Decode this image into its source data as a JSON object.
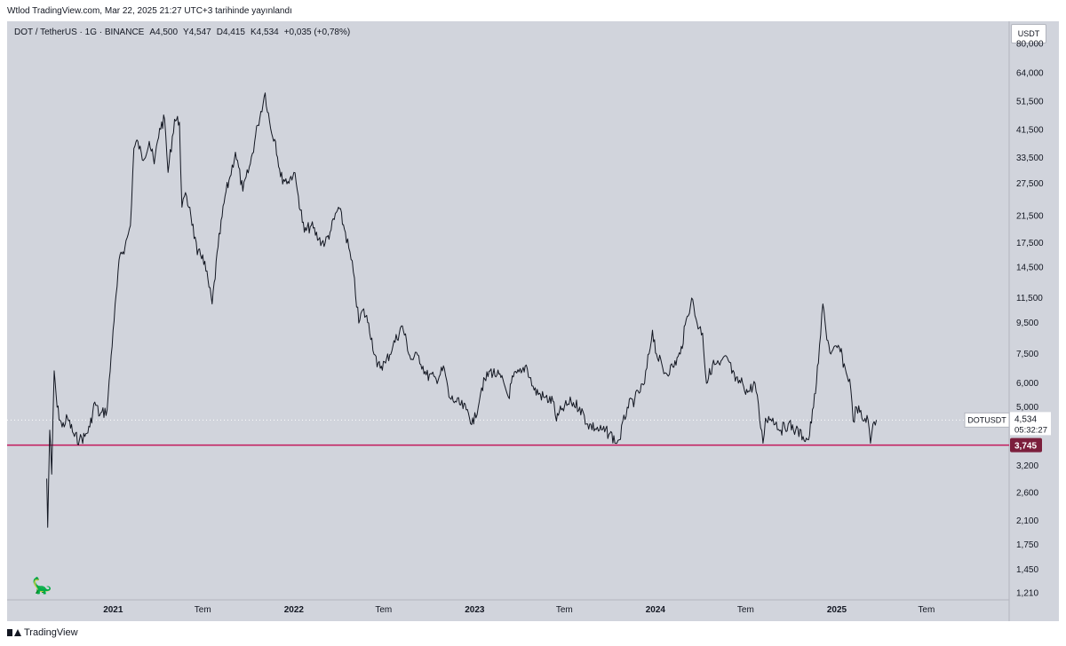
{
  "caption": "Wtlod TradingView.com, Mar 22, 2025 21:27 UTC+3 tarihinde yayınlandı",
  "header": {
    "symbol": "DOT / TetherUS · 1G · BINANCE",
    "open": "A4,500",
    "high": "Y4,547",
    "low": "D4,415",
    "close": "K4,534",
    "change": "+0,035 (+0,78%)"
  },
  "currency": "USDT",
  "footer": {
    "brand": "TradingView"
  },
  "icons": {
    "logo": "tradingview-logo-icon",
    "mascot": "dinosaur-icon"
  },
  "colors": {
    "background": "#d1d4dc",
    "price_line": "#131722",
    "support_line": "#c2185b",
    "support_label_bg": "#7b1f3c"
  },
  "chart_data": {
    "type": "line",
    "symbol": "DOTUSDT",
    "title": "DOT / TetherUS · 1G · BINANCE",
    "xlabel": "",
    "ylabel": "",
    "y_scale": "log",
    "ylim": [
      1.15,
      95
    ],
    "xlim": [
      "2020-06-01",
      "2025-12-15"
    ],
    "x_ticks": [
      {
        "date": "2021-01-01",
        "label": "2021"
      },
      {
        "date": "2021-07-01",
        "label": "Tem"
      },
      {
        "date": "2022-01-01",
        "label": "2022"
      },
      {
        "date": "2022-07-01",
        "label": "Tem"
      },
      {
        "date": "2023-01-01",
        "label": "2023"
      },
      {
        "date": "2023-07-01",
        "label": "Tem"
      },
      {
        "date": "2024-01-01",
        "label": "2024"
      },
      {
        "date": "2024-07-01",
        "label": "Tem"
      },
      {
        "date": "2025-01-01",
        "label": "2025"
      },
      {
        "date": "2025-07-01",
        "label": "Tem"
      }
    ],
    "y_ticks": [
      {
        "value": 80,
        "label": "80,000"
      },
      {
        "value": 64,
        "label": "64,000"
      },
      {
        "value": 51.5,
        "label": "51,500"
      },
      {
        "value": 41.5,
        "label": "41,500"
      },
      {
        "value": 33.5,
        "label": "33,500"
      },
      {
        "value": 27.5,
        "label": "27,500"
      },
      {
        "value": 21.5,
        "label": "21,500"
      },
      {
        "value": 17.5,
        "label": "17,500"
      },
      {
        "value": 14.5,
        "label": "14,500"
      },
      {
        "value": 11.5,
        "label": "11,500"
      },
      {
        "value": 9.5,
        "label": "9,500"
      },
      {
        "value": 7.5,
        "label": "7,500"
      },
      {
        "value": 6,
        "label": "6,000"
      },
      {
        "value": 5,
        "label": "5,000"
      },
      {
        "value": 3.2,
        "label": "3,200"
      },
      {
        "value": 2.6,
        "label": "2,600"
      },
      {
        "value": 2.1,
        "label": "2,100"
      },
      {
        "value": 1.75,
        "label": "1,750"
      },
      {
        "value": 1.45,
        "label": "1,450"
      },
      {
        "value": 1.21,
        "label": "1,210"
      }
    ],
    "price_series": [
      [
        "2020-08-20",
        2.9
      ],
      [
        "2020-08-22",
        2.0
      ],
      [
        "2020-08-26",
        4.2
      ],
      [
        "2020-08-30",
        3.0
      ],
      [
        "2020-09-04",
        6.6
      ],
      [
        "2020-09-10",
        5.0
      ],
      [
        "2020-09-20",
        4.3
      ],
      [
        "2020-10-01",
        4.6
      ],
      [
        "2020-10-15",
        4.0
      ],
      [
        "2020-10-25",
        3.9
      ],
      [
        "2020-11-05",
        4.0
      ],
      [
        "2020-11-15",
        4.3
      ],
      [
        "2020-11-25",
        5.2
      ],
      [
        "2020-12-05",
        4.7
      ],
      [
        "2020-12-20",
        4.9
      ],
      [
        "2021-01-01",
        9.0
      ],
      [
        "2021-01-15",
        16.0
      ],
      [
        "2021-01-25",
        17.0
      ],
      [
        "2021-02-05",
        20.0
      ],
      [
        "2021-02-12",
        36.0
      ],
      [
        "2021-02-20",
        38.0
      ],
      [
        "2021-03-01",
        33.0
      ],
      [
        "2021-03-15",
        38.0
      ],
      [
        "2021-03-25",
        32.0
      ],
      [
        "2021-04-05",
        42.0
      ],
      [
        "2021-04-15",
        45.0
      ],
      [
        "2021-04-22",
        30.0
      ],
      [
        "2021-05-05",
        45.0
      ],
      [
        "2021-05-15",
        44.0
      ],
      [
        "2021-05-20",
        23.0
      ],
      [
        "2021-05-25",
        25.0
      ],
      [
        "2021-06-05",
        23.0
      ],
      [
        "2021-06-20",
        16.0
      ],
      [
        "2021-07-01",
        16.0
      ],
      [
        "2021-07-20",
        11.0
      ],
      [
        "2021-08-01",
        17.0
      ],
      [
        "2021-08-15",
        25.0
      ],
      [
        "2021-08-25",
        29.0
      ],
      [
        "2021-09-05",
        35.0
      ],
      [
        "2021-09-20",
        26.0
      ],
      [
        "2021-10-05",
        32.0
      ],
      [
        "2021-10-20",
        43.0
      ],
      [
        "2021-11-04",
        55.0
      ],
      [
        "2021-11-15",
        42.0
      ],
      [
        "2021-11-25",
        38.0
      ],
      [
        "2021-12-05",
        29.0
      ],
      [
        "2021-12-20",
        28.0
      ],
      [
        "2022-01-01",
        30.0
      ],
      [
        "2022-01-10",
        25.0
      ],
      [
        "2022-01-22",
        19.0
      ],
      [
        "2022-02-05",
        20.0
      ],
      [
        "2022-02-20",
        18.0
      ],
      [
        "2022-03-05",
        17.5
      ],
      [
        "2022-03-15",
        19.0
      ],
      [
        "2022-04-01",
        23.0
      ],
      [
        "2022-04-15",
        19.0
      ],
      [
        "2022-05-01",
        14.0
      ],
      [
        "2022-05-12",
        9.5
      ],
      [
        "2022-05-20",
        10.5
      ],
      [
        "2022-06-01",
        9.5
      ],
      [
        "2022-06-18",
        6.8
      ],
      [
        "2022-07-05",
        7.0
      ],
      [
        "2022-07-20",
        8.0
      ],
      [
        "2022-08-08",
        9.3
      ],
      [
        "2022-08-25",
        7.2
      ],
      [
        "2022-09-10",
        7.4
      ],
      [
        "2022-09-25",
        6.4
      ],
      [
        "2022-10-15",
        6.2
      ],
      [
        "2022-11-01",
        6.7
      ],
      [
        "2022-11-10",
        5.4
      ],
      [
        "2022-11-25",
        5.2
      ],
      [
        "2022-12-15",
        4.9
      ],
      [
        "2022-12-30",
        4.4
      ],
      [
        "2023-01-15",
        5.8
      ],
      [
        "2023-02-01",
        6.6
      ],
      [
        "2023-02-15",
        6.4
      ],
      [
        "2023-03-01",
        6.0
      ],
      [
        "2023-03-10",
        5.4
      ],
      [
        "2023-03-20",
        6.3
      ],
      [
        "2023-04-05",
        6.5
      ],
      [
        "2023-04-15",
        6.9
      ],
      [
        "2023-05-01",
        5.7
      ],
      [
        "2023-05-20",
        5.4
      ],
      [
        "2023-06-10",
        5.2
      ],
      [
        "2023-06-15",
        4.5
      ],
      [
        "2023-06-25",
        4.9
      ],
      [
        "2023-07-15",
        5.2
      ],
      [
        "2023-08-01",
        5.0
      ],
      [
        "2023-08-17",
        4.4
      ],
      [
        "2023-09-10",
        4.2
      ],
      [
        "2023-10-01",
        4.1
      ],
      [
        "2023-10-15",
        3.8
      ],
      [
        "2023-10-20",
        3.9
      ],
      [
        "2023-11-05",
        5.0
      ],
      [
        "2023-11-20",
        5.3
      ],
      [
        "2023-12-10",
        6.0
      ],
      [
        "2023-12-26",
        9.0
      ],
      [
        "2024-01-03",
        7.5
      ],
      [
        "2024-01-20",
        6.5
      ],
      [
        "2024-02-05",
        6.8
      ],
      [
        "2024-02-20",
        7.5
      ],
      [
        "2024-03-05",
        10.0
      ],
      [
        "2024-03-14",
        11.5
      ],
      [
        "2024-03-25",
        9.5
      ],
      [
        "2024-04-05",
        8.8
      ],
      [
        "2024-04-13",
        6.0
      ],
      [
        "2024-04-25",
        6.9
      ],
      [
        "2024-05-10",
        6.9
      ],
      [
        "2024-05-25",
        7.3
      ],
      [
        "2024-06-10",
        6.1
      ],
      [
        "2024-06-25",
        6.0
      ],
      [
        "2024-07-05",
        5.6
      ],
      [
        "2024-07-20",
        6.0
      ],
      [
        "2024-08-05",
        3.8
      ],
      [
        "2024-08-10",
        4.6
      ],
      [
        "2024-08-25",
        4.6
      ],
      [
        "2024-09-10",
        4.2
      ],
      [
        "2024-09-25",
        4.4
      ],
      [
        "2024-10-10",
        4.2
      ],
      [
        "2024-10-25",
        4.0
      ],
      [
        "2024-11-05",
        3.9
      ],
      [
        "2024-11-15",
        5.0
      ],
      [
        "2024-11-25",
        7.0
      ],
      [
        "2024-12-04",
        11.0
      ],
      [
        "2024-12-10",
        9.0
      ],
      [
        "2024-12-20",
        7.5
      ],
      [
        "2025-01-06",
        7.9
      ],
      [
        "2025-01-20",
        6.5
      ],
      [
        "2025-01-27",
        6.2
      ],
      [
        "2025-02-03",
        4.5
      ],
      [
        "2025-02-10",
        5.0
      ],
      [
        "2025-02-25",
        4.5
      ],
      [
        "2025-03-03",
        4.7
      ],
      [
        "2025-03-10",
        3.8
      ],
      [
        "2025-03-15",
        4.4
      ],
      [
        "2025-03-22",
        4.534
      ]
    ],
    "support_level": {
      "value": 3.745,
      "label": "3,745"
    },
    "last_price": {
      "value": 4.534,
      "label": "4,534",
      "symbol_label": "DOTUSDT",
      "countdown": "05:32:27"
    }
  }
}
